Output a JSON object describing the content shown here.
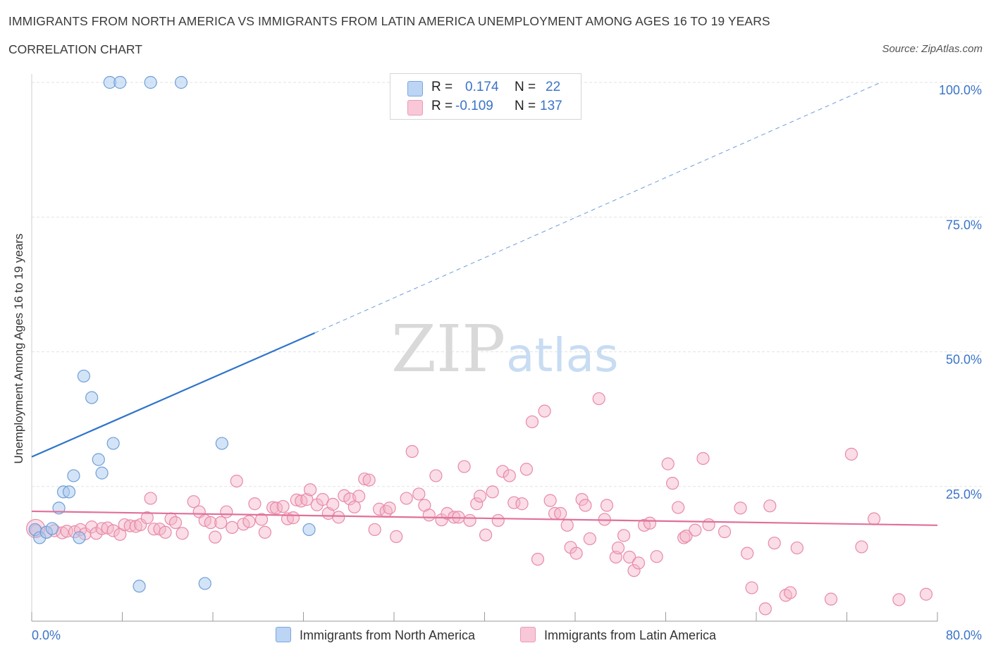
{
  "header": {
    "title": "IMMIGRANTS FROM NORTH AMERICA VS IMMIGRANTS FROM LATIN AMERICA UNEMPLOYMENT AMONG AGES 16 TO 19 YEARS",
    "subtitle": "CORRELATION CHART",
    "source": "Source: ZipAtlas.com"
  },
  "watermark": "ZIPatlas",
  "legend": {
    "r_label": "R =",
    "n_label": "N =",
    "rows": [
      {
        "r": "0.174",
        "n": "22"
      },
      {
        "r": "-0.109",
        "n": "137"
      }
    ]
  },
  "colors": {
    "blue_fill": "#aac9f0",
    "blue_stroke": "#6f9fd8",
    "blue_line": "#2e74cc",
    "pink_fill": "#f5b3c8",
    "pink_stroke": "#e88aa8",
    "pink_line": "#e0709a",
    "tick_text": "#3a74c8",
    "grid": "#e3e3e3"
  },
  "chart_data": {
    "type": "scatter",
    "title": "IMMIGRANTS FROM NORTH AMERICA VS IMMIGRANTS FROM LATIN AMERICA UNEMPLOYMENT AMONG AGES 16 TO 19 YEARS",
    "xlabel": "",
    "ylabel": "Unemployment Among Ages 16 to 19 years",
    "xlim": [
      0,
      80
    ],
    "ylim": [
      0,
      100
    ],
    "x_tick_labels": [
      "0.0%",
      "80.0%"
    ],
    "y_ticks": [
      25,
      50,
      75,
      100
    ],
    "y_tick_labels": [
      "25.0%",
      "50.0%",
      "75.0%",
      "100.0%"
    ],
    "grid": true,
    "series": [
      {
        "name": "Immigrants from North America",
        "color": "#aac9f0",
        "r": 0.174,
        "n": 22,
        "trend": {
          "x": [
            0,
            25
          ],
          "y": [
            30.5,
            53.5
          ],
          "dashed_to": [
            75,
            100
          ]
        },
        "points": [
          [
            0.3,
            17
          ],
          [
            0.7,
            15.5
          ],
          [
            1.3,
            16.5
          ],
          [
            1.8,
            17.2
          ],
          [
            2.4,
            21
          ],
          [
            2.8,
            24
          ],
          [
            3.3,
            24
          ],
          [
            3.7,
            27
          ],
          [
            4.2,
            15.5
          ],
          [
            4.6,
            45.5
          ],
          [
            5.3,
            41.5
          ],
          [
            5.9,
            30
          ],
          [
            6.2,
            27.5
          ],
          [
            7.2,
            33
          ],
          [
            6.9,
            100
          ],
          [
            7.8,
            100
          ],
          [
            10.5,
            100
          ],
          [
            13.2,
            100
          ],
          [
            9.5,
            6.5
          ],
          [
            15.3,
            7
          ],
          [
            16.8,
            33
          ],
          [
            24.5,
            17
          ]
        ]
      },
      {
        "name": "Immigrants from Latin America",
        "color": "#f5b3c8",
        "r": -0.109,
        "n": 137,
        "trend": {
          "x": [
            0,
            80
          ],
          "y": [
            20.4,
            17.8
          ]
        },
        "points": [
          [
            0.4,
            16.8
          ],
          [
            1.3,
            16.5
          ],
          [
            2.0,
            16.8
          ],
          [
            2.7,
            16.4
          ],
          [
            3.1,
            16.7
          ],
          [
            3.8,
            16.6
          ],
          [
            4.3,
            17
          ],
          [
            4.7,
            16.2
          ],
          [
            5.3,
            17.5
          ],
          [
            5.7,
            16.3
          ],
          [
            6.2,
            17.2
          ],
          [
            6.7,
            17.3
          ],
          [
            7.2,
            16.8
          ],
          [
            7.8,
            16.1
          ],
          [
            8.2,
            17.9
          ],
          [
            8.7,
            17.7
          ],
          [
            9.2,
            17.6
          ],
          [
            9.6,
            17.9
          ],
          [
            10.2,
            19.2
          ],
          [
            10.5,
            22.8
          ],
          [
            10.8,
            17.1
          ],
          [
            11.3,
            17.1
          ],
          [
            11.8,
            16.5
          ],
          [
            12.3,
            19
          ],
          [
            12.7,
            18.3
          ],
          [
            13.3,
            16.3
          ],
          [
            14.3,
            22.2
          ],
          [
            14.8,
            20.3
          ],
          [
            15.3,
            18.7
          ],
          [
            15.8,
            18.3
          ],
          [
            16.2,
            15.6
          ],
          [
            16.7,
            18.3
          ],
          [
            17.2,
            20.3
          ],
          [
            17.7,
            17.4
          ],
          [
            18.1,
            26
          ],
          [
            18.7,
            18
          ],
          [
            19.2,
            18.5
          ],
          [
            19.7,
            21.8
          ],
          [
            20.3,
            18.9
          ],
          [
            20.6,
            16.5
          ],
          [
            21.3,
            21.1
          ],
          [
            21.6,
            21
          ],
          [
            22.2,
            21.3
          ],
          [
            22.6,
            19
          ],
          [
            23.1,
            19.2
          ],
          [
            23.4,
            22.5
          ],
          [
            23.8,
            22.3
          ],
          [
            24.3,
            22.6
          ],
          [
            24.6,
            24.4
          ],
          [
            25.2,
            21.6
          ],
          [
            25.7,
            22.6
          ],
          [
            26.2,
            20
          ],
          [
            26.6,
            21.7
          ],
          [
            27.1,
            19.3
          ],
          [
            27.6,
            23.3
          ],
          [
            28.1,
            22.7
          ],
          [
            28.5,
            21.2
          ],
          [
            28.9,
            23.2
          ],
          [
            29.4,
            26.4
          ],
          [
            29.8,
            26.2
          ],
          [
            30.3,
            17
          ],
          [
            30.7,
            20.8
          ],
          [
            31.3,
            20.4
          ],
          [
            31.6,
            21
          ],
          [
            32.2,
            15.7
          ],
          [
            33.1,
            22.8
          ],
          [
            33.6,
            31.5
          ],
          [
            34.2,
            23.6
          ],
          [
            34.7,
            21.5
          ],
          [
            35.1,
            19.7
          ],
          [
            35.7,
            27
          ],
          [
            36.2,
            18.8
          ],
          [
            36.7,
            20
          ],
          [
            37.3,
            19.3
          ],
          [
            37.7,
            19.3
          ],
          [
            38.2,
            28.7
          ],
          [
            38.7,
            18.7
          ],
          [
            39.3,
            21.8
          ],
          [
            39.6,
            23.2
          ],
          [
            40.1,
            16
          ],
          [
            40.7,
            24
          ],
          [
            41.2,
            18.7
          ],
          [
            41.6,
            27.8
          ],
          [
            42.2,
            27
          ],
          [
            42.6,
            22
          ],
          [
            43.3,
            21.8
          ],
          [
            43.7,
            28.2
          ],
          [
            44.2,
            37
          ],
          [
            44.7,
            11.5
          ],
          [
            45.3,
            39
          ],
          [
            45.8,
            22.4
          ],
          [
            46.2,
            20
          ],
          [
            46.7,
            20
          ],
          [
            47.3,
            17.8
          ],
          [
            47.6,
            13.7
          ],
          [
            48.1,
            12.6
          ],
          [
            48.6,
            22.6
          ],
          [
            48.9,
            21.5
          ],
          [
            49.3,
            15.3
          ],
          [
            50.1,
            41.3
          ],
          [
            50.6,
            18.9
          ],
          [
            50.8,
            21.5
          ],
          [
            51.6,
            11.9
          ],
          [
            51.8,
            13.6
          ],
          [
            52.3,
            15.9
          ],
          [
            52.8,
            11.9
          ],
          [
            53.2,
            9.4
          ],
          [
            53.6,
            10.8
          ],
          [
            54.1,
            17.8
          ],
          [
            54.6,
            18.2
          ],
          [
            55.2,
            12
          ],
          [
            56.2,
            29.2
          ],
          [
            56.6,
            25.6
          ],
          [
            57.1,
            21.1
          ],
          [
            57.6,
            15.5
          ],
          [
            57.8,
            15.8
          ],
          [
            58.6,
            16.9
          ],
          [
            59.3,
            30.2
          ],
          [
            59.8,
            17.9
          ],
          [
            61.2,
            16.6
          ],
          [
            62.6,
            21
          ],
          [
            63.2,
            12.6
          ],
          [
            63.6,
            6.2
          ],
          [
            64.8,
            2.3
          ],
          [
            65.2,
            21.4
          ],
          [
            65.6,
            14.5
          ],
          [
            66.6,
            4.8
          ],
          [
            67.0,
            5.3
          ],
          [
            67.6,
            13.6
          ],
          [
            70.6,
            4.1
          ],
          [
            72.4,
            31
          ],
          [
            73.3,
            13.8
          ],
          [
            74.4,
            19
          ],
          [
            76.6,
            4
          ],
          [
            79.0,
            5
          ]
        ]
      }
    ]
  },
  "bottom_legend": [
    {
      "label": "Immigrants from North America"
    },
    {
      "label": "Immigrants from Latin America"
    }
  ]
}
